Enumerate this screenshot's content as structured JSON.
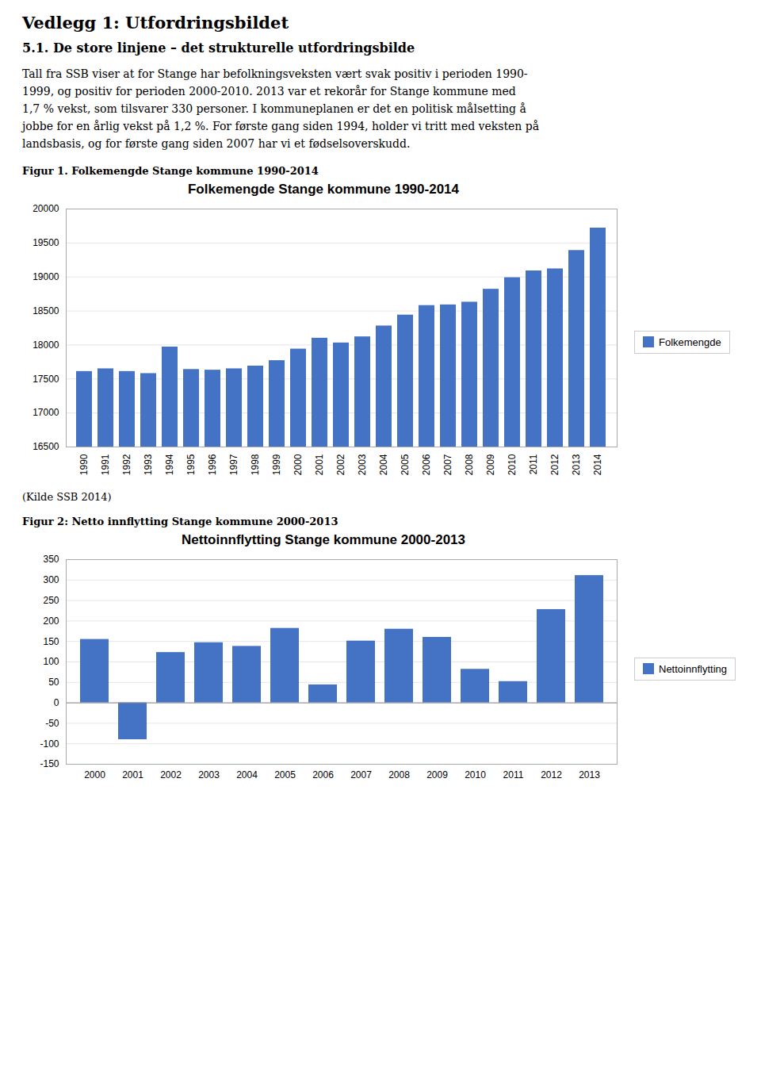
{
  "title": "Vedlegg 1: Utfordringsbildet",
  "subtitle": "5.1. De store linjene – det strukturelle utfordringsbilde",
  "annotations": [
    "Tall fra SSB viser at for Stange har befolkningsveksten vært svak positiv i perioden 1990-",
    "1999, og positiv for perioden 2000-2010. 2013 var et rekorår for Stange kommune med",
    "1,7 % vekst, som tilsvarer 330 personer. I kommuneplanen er det en politisk målsetting å",
    "jobbe for en årlig vekst på 1,2 %. For første gang siden 1994, holder vi tritt med veksten på",
    "landsbasis, og for første gang siden 2007 har vi et fødselsoverskudd."
  ],
  "chart_data": [
    {
      "type": "bar",
      "title": "Folkemengde Stange kommune 1990-2014",
      "annotations": [
        "Figur 1. Folkemengde Stange kommune 1990-2014",
        "(Kilde SSB 2014)"
      ],
      "categories": [
        1990,
        1991,
        1992,
        1993,
        1994,
        1995,
        1996,
        1997,
        1998,
        1999,
        2000,
        2001,
        2002,
        2003,
        2004,
        2005,
        2006,
        2007,
        2008,
        2009,
        2010,
        2011,
        2012,
        2013,
        2014
      ],
      "series": [
        {
          "name": "Folkemengde",
          "color": "#4472C4",
          "values": [
            17610,
            17650,
            17610,
            17580,
            17970,
            17640,
            17630,
            17650,
            17690,
            17770,
            17940,
            18100,
            18030,
            18120,
            18280,
            18440,
            18580,
            18590,
            18630,
            18820,
            18990,
            19090,
            19120,
            19390,
            19720
          ]
        }
      ],
      "ylim": [
        16500,
        20000
      ],
      "yticks": [
        16500,
        17000,
        17500,
        18000,
        18500,
        19000,
        19500,
        20000
      ],
      "grid": true,
      "legend": "right"
    },
    {
      "type": "bar",
      "title": "Nettoinnflytting Stange kommune 2000-2013",
      "annotations": [
        "Figur 2: Netto innflytting Stange kommune 2000-2013"
      ],
      "categories": [
        2000,
        2001,
        2002,
        2003,
        2004,
        2005,
        2006,
        2007,
        2008,
        2009,
        2010,
        2011,
        2012,
        2013
      ],
      "series": [
        {
          "name": "Nettoinnflytting",
          "color": "#4472C4",
          "values": [
            155,
            -90,
            123,
            147,
            138,
            182,
            44,
            151,
            180,
            160,
            82,
            52,
            228,
            311
          ]
        }
      ],
      "ylim": [
        -150,
        350
      ],
      "yticks": [
        -150,
        -100,
        -50,
        0,
        50,
        100,
        150,
        200,
        250,
        300,
        350
      ],
      "grid": true,
      "legend": "right"
    }
  ]
}
